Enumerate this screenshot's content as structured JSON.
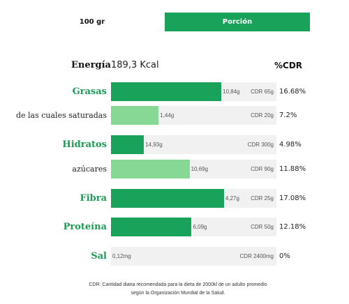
{
  "tabs": {
    "per_100": "100 gr",
    "portion": "Porción"
  },
  "energy": {
    "label": "Energía",
    "value": "189,3 Kcal"
  },
  "cdr_header": "%CDR",
  "rows": [
    {
      "label": "Grasas",
      "style": "main",
      "amount": "10,84g",
      "cdr": "CDR 65g",
      "pct": "16.68%",
      "fill_fraction": 0.1668,
      "fill": "dark"
    },
    {
      "label": "de las cuales saturadas",
      "style": "sub",
      "amount": "1,44g",
      "cdr": "CDR 20g",
      "pct": "7.2%",
      "fill_fraction": 0.072,
      "fill": "light"
    },
    {
      "label": "Hidratos",
      "style": "main",
      "amount": "14,93g",
      "cdr": "CDR 300g",
      "pct": "4.98%",
      "fill_fraction": 0.0498,
      "fill": "dark"
    },
    {
      "label": "azúcares",
      "style": "sub",
      "amount": "10,69g",
      "cdr": "CDR 90g",
      "pct": "11.88%",
      "fill_fraction": 0.1188,
      "fill": "light"
    },
    {
      "label": "Fibra",
      "style": "main",
      "amount": "4,27g",
      "cdr": "CDR 25g",
      "pct": "17.08%",
      "fill_fraction": 0.1708,
      "fill": "dark"
    },
    {
      "label": "Proteína",
      "style": "main",
      "amount": "6,09g",
      "cdr": "CDR 50g",
      "pct": "12.18%",
      "fill_fraction": 0.1218,
      "fill": "dark"
    },
    {
      "label": "Sal",
      "style": "main",
      "amount": "0,12mg",
      "cdr": "CDR 2400mg",
      "pct": "0%",
      "fill_fraction": 0,
      "fill": "dark"
    }
  ],
  "footnote": {
    "line1": "CDR: Cantidad diaria recomendada para la dieta de 2000kl de un adulto promedio",
    "line2": "según la Organización Mundial de la Salud."
  },
  "colors": {
    "accent": "#19a35a",
    "accent_light": "#86d894",
    "label_green": "#1c9b55",
    "track": "#f1f1f1"
  }
}
